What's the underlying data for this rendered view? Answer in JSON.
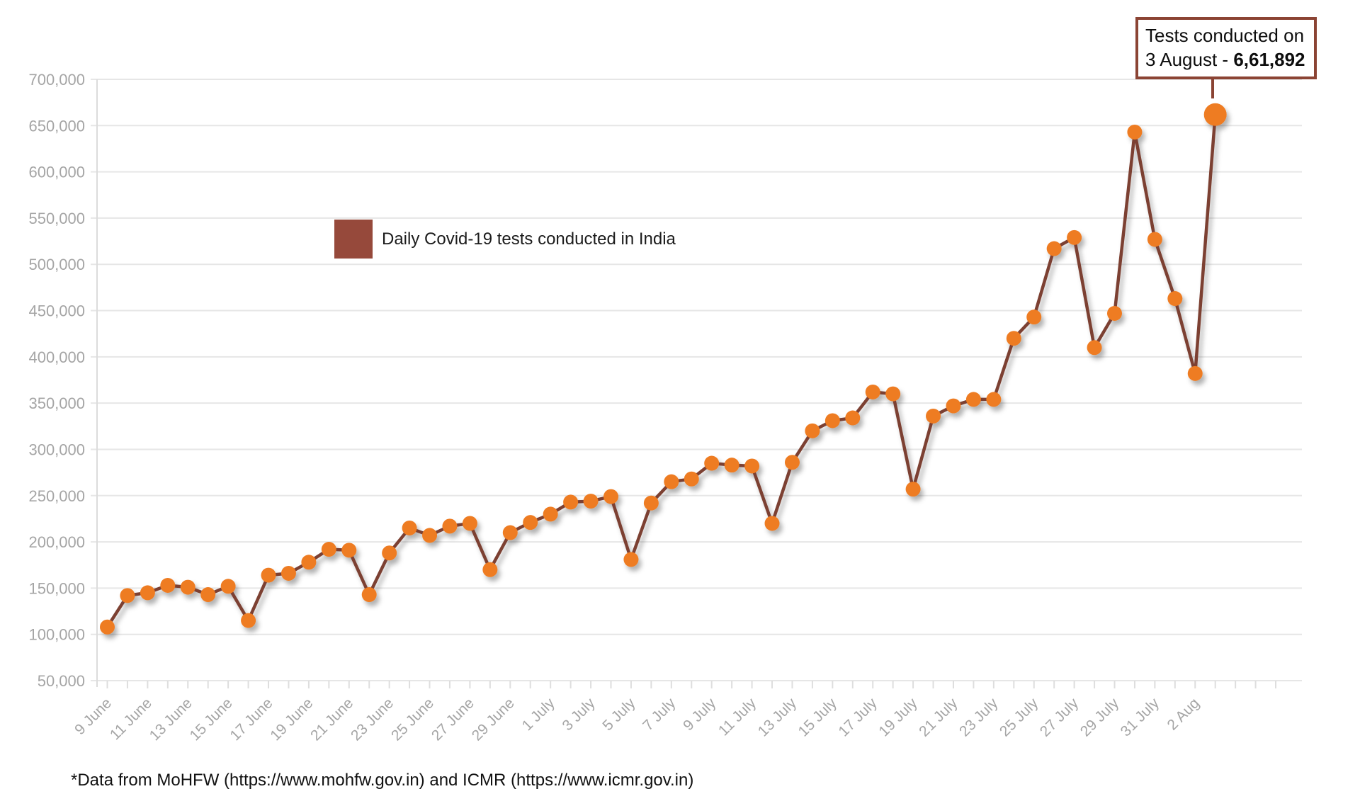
{
  "chart": {
    "legend_label": "Daily Covid-19 tests conducted in India",
    "annotation": {
      "line1": "Tests conducted on",
      "line2_prefix": "3 August - ",
      "line2_value": "6,61,892"
    },
    "footer": "*Data from MoHFW (https://www.mohfw.gov.in) and ICMR (https://www.icmr.gov.in)",
    "colors": {
      "marker": "#EE7C23",
      "line": "#7B4031",
      "legend_box": "#96493B",
      "annotation_border": "#8B4434",
      "grid": "#E6E6E6",
      "axis": "#DCDCDC",
      "tick": "#DEDEDE",
      "tick_label": "#A5A5A5"
    }
  },
  "chart_data": {
    "type": "line",
    "title": "",
    "series_name": "Daily Covid-19 tests conducted in India",
    "x": [
      "9 June",
      "10 June",
      "11 June",
      "12 June",
      "13 June",
      "14 June",
      "15 June",
      "16 June",
      "17 June",
      "18 June",
      "19 June",
      "20 June",
      "21 June",
      "22 June",
      "23 June",
      "24 June",
      "25 June",
      "26 June",
      "27 June",
      "28 June",
      "29 June",
      "30 June",
      "1 July",
      "2 July",
      "3 July",
      "4 July",
      "5 July",
      "6 July",
      "7 July",
      "8 July",
      "9 July",
      "10 July",
      "11 July",
      "12 July",
      "13 July",
      "14 July",
      "15 July",
      "16 July",
      "17 July",
      "18 July",
      "19 July",
      "20 July",
      "21 July",
      "22 July",
      "23 July",
      "24 July",
      "25 July",
      "26 July",
      "27 July",
      "28 July",
      "29 July",
      "30 July",
      "31 July",
      "1 Aug",
      "2 Aug",
      "3 Aug"
    ],
    "values": [
      108000,
      142000,
      145000,
      153000,
      151000,
      143000,
      152000,
      115000,
      164000,
      166000,
      178000,
      192000,
      191000,
      143000,
      188000,
      215000,
      207000,
      217000,
      220000,
      170000,
      210000,
      221000,
      230000,
      243000,
      244000,
      249000,
      181000,
      242000,
      265000,
      268000,
      285000,
      283000,
      282000,
      220000,
      286000,
      320000,
      331000,
      334000,
      362000,
      360000,
      257000,
      336000,
      347000,
      354000,
      354000,
      420000,
      443000,
      517000,
      529000,
      410000,
      447000,
      643000,
      527000,
      463000,
      382000,
      661892
    ],
    "x_tick_labels": [
      "9 June",
      "11 June",
      "13 June",
      "15 June",
      "17 June",
      "19 June",
      "21 June",
      "23 June",
      "25 June",
      "27 June",
      "29 June",
      "1 July",
      "3 July",
      "5 July",
      "7 July",
      "9 July",
      "11 July",
      "13 July",
      "15 July",
      "17 July",
      "19 July",
      "21 July",
      "23 July",
      "25 July",
      "27 July",
      "29 July",
      "31 July",
      "2 Aug"
    ],
    "x_label_every": 2,
    "y_ticks": [
      50000,
      100000,
      150000,
      200000,
      250000,
      300000,
      350000,
      400000,
      450000,
      500000,
      550000,
      600000,
      650000,
      700000
    ],
    "y_tick_labels": [
      "50,000",
      "100,000",
      "150,000",
      "200,000",
      "250,000",
      "300,000",
      "350,000",
      "400,000",
      "450,000",
      "500,000",
      "550,000",
      "600,000",
      "650,000",
      "700,000"
    ],
    "ylim": [
      50000,
      700000
    ],
    "grid": "horizontal",
    "legend_position": "inside-top-left",
    "highlight_last_point": true,
    "annotation_point": {
      "date": "3 August",
      "value": 661892
    }
  }
}
